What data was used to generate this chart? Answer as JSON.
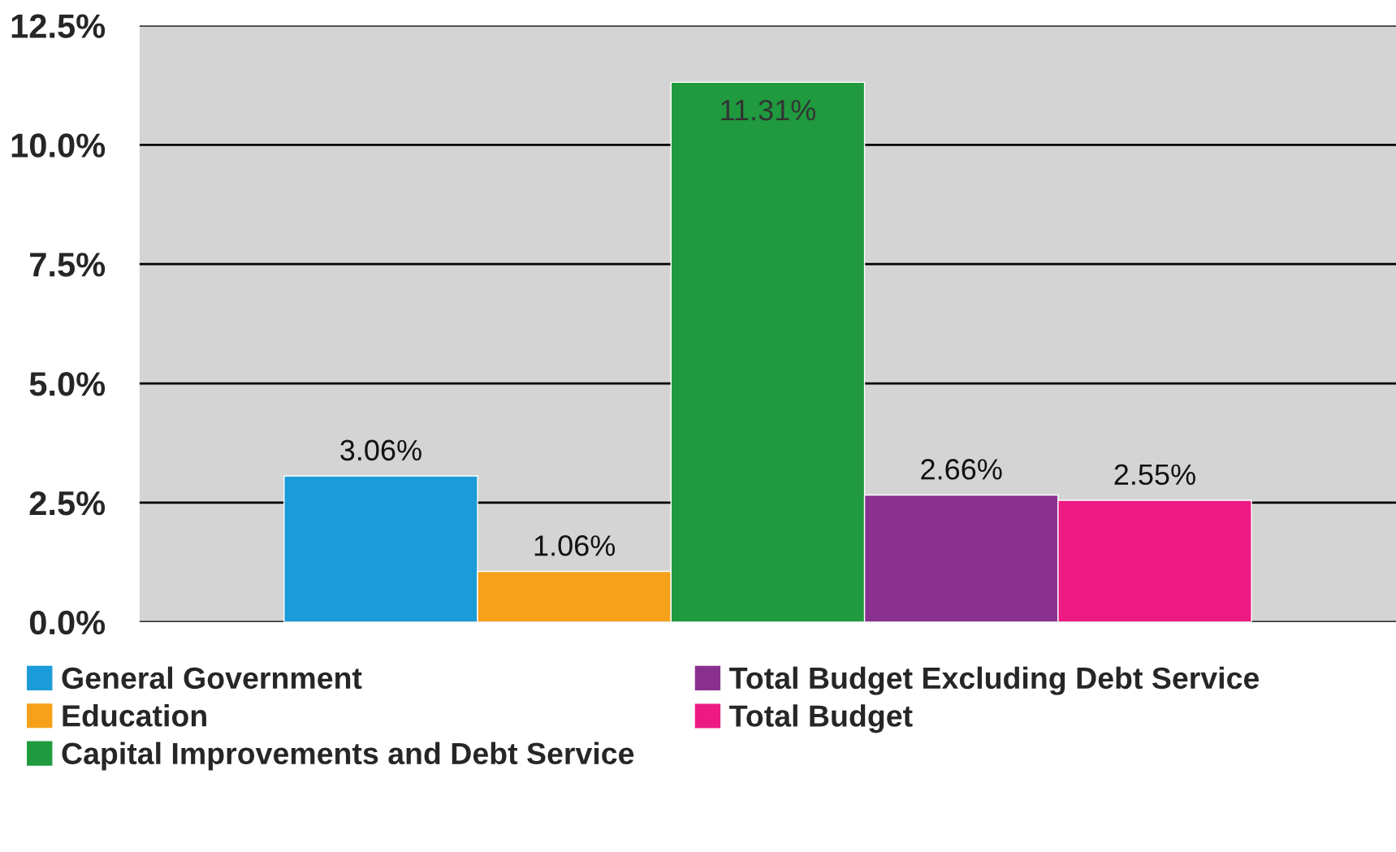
{
  "chart_data": {
    "type": "bar",
    "categories": [
      null
    ],
    "series": [
      {
        "name": "General Government",
        "color": "#1b9bd7",
        "values": [
          3.06
        ],
        "value_labels": [
          "3.06%"
        ]
      },
      {
        "name": "Education",
        "color": "#f7a11a",
        "values": [
          1.06
        ],
        "value_labels": [
          "1.06%"
        ]
      },
      {
        "name": "Capital Improvements and Debt Service",
        "color": "#1f9a3e",
        "values": [
          11.31
        ],
        "value_labels": [
          "11.31%"
        ]
      },
      {
        "name": "Total Budget Excluding Debt Service",
        "color": "#8a3190",
        "values": [
          2.66
        ],
        "value_labels": [
          "2.66%"
        ]
      },
      {
        "name": "Total Budget",
        "color": "#ed1a84",
        "values": [
          2.55
        ],
        "value_labels": [
          "2.55%"
        ]
      }
    ],
    "ylim": [
      0,
      12.5
    ],
    "yticks": [
      {
        "value": 0,
        "label": "0.0%"
      },
      {
        "value": 2.5,
        "label": "2.5%"
      },
      {
        "value": 5,
        "label": "5.0%"
      },
      {
        "value": 7.5,
        "label": "7.5%"
      },
      {
        "value": 10,
        "label": "10.0%"
      },
      {
        "value": 12.5,
        "label": "12.5%"
      }
    ],
    "grid": "y",
    "legend": "bottom"
  }
}
